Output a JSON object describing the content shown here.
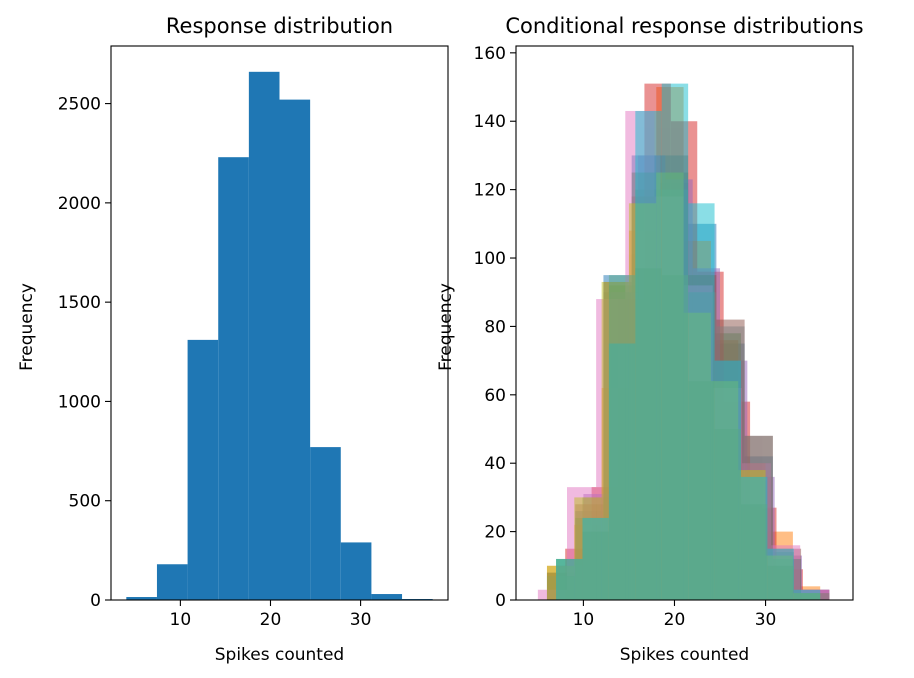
{
  "chart_data": [
    {
      "type": "bar",
      "title": "Response distribution",
      "xlabel": "Spikes counted",
      "ylabel": "Frequency",
      "xlim": [
        2.3,
        39.7
      ],
      "ylim": [
        0,
        2790
      ],
      "xticks": [
        10,
        20,
        30
      ],
      "yticks": [
        0,
        500,
        1000,
        1500,
        2000,
        2500
      ],
      "color": "#1f77b4",
      "bins": [
        {
          "x0": 4.0,
          "x1": 7.4,
          "value": 15
        },
        {
          "x0": 7.4,
          "x1": 10.8,
          "value": 180
        },
        {
          "x0": 10.8,
          "x1": 14.2,
          "value": 1310
        },
        {
          "x0": 14.2,
          "x1": 17.6,
          "value": 2230
        },
        {
          "x0": 17.6,
          "x1": 21.0,
          "value": 2660
        },
        {
          "x0": 21.0,
          "x1": 24.4,
          "value": 2520
        },
        {
          "x0": 24.4,
          "x1": 27.8,
          "value": 770
        },
        {
          "x0": 27.8,
          "x1": 31.2,
          "value": 290
        },
        {
          "x0": 31.2,
          "x1": 34.6,
          "value": 30
        },
        {
          "x0": 34.6,
          "x1": 38.0,
          "value": 5
        }
      ]
    },
    {
      "type": "bar",
      "title": "Conditional response distributions",
      "xlabel": "Spikes counted",
      "ylabel": "Frequency",
      "xlim": [
        2.6,
        39.6
      ],
      "ylim": [
        0,
        162
      ],
      "xticks": [
        10,
        20,
        30
      ],
      "yticks": [
        0,
        20,
        40,
        60,
        80,
        100,
        120,
        140,
        160
      ],
      "opacity": 0.5,
      "series": [
        {
          "color": "#1f77b4",
          "x0": 6,
          "width": 3.1,
          "values": [
            8,
            26,
            95,
            130,
            122,
            110,
            75,
            42,
            12,
            3
          ]
        },
        {
          "color": "#ff7f0e",
          "x0": 6,
          "width": 3.0,
          "values": [
            10,
            22,
            62,
            108,
            150,
            105,
            76,
            40,
            20,
            4
          ]
        },
        {
          "color": "#2ca02c",
          "x0": 7,
          "width": 2.9,
          "values": [
            12,
            30,
            92,
            120,
            125,
            95,
            78,
            35,
            14,
            2
          ]
        },
        {
          "color": "#d62728",
          "x0": 8,
          "width": 2.9,
          "values": [
            15,
            33,
            88,
            151,
            140,
            96,
            58,
            27,
            9,
            3
          ]
        },
        {
          "color": "#9467bd",
          "x0": 7,
          "width": 3.0,
          "values": [
            10,
            31,
            90,
            130,
            123,
            97,
            70,
            36,
            13,
            3
          ]
        },
        {
          "color": "#8c564b",
          "x0": 6,
          "width": 3.1,
          "values": [
            8,
            28,
            93,
            118,
            130,
            95,
            82,
            48,
            15,
            2
          ]
        },
        {
          "color": "#e377c2",
          "x0": 5,
          "width": 3.2,
          "values": [
            3,
            33,
            88,
            143,
            118,
            92,
            62,
            40,
            16,
            3
          ]
        },
        {
          "color": "#7f7f7f",
          "x0": 6,
          "width": 3.1,
          "values": [
            7,
            24,
            90,
            125,
            120,
            90,
            80,
            48,
            12,
            2
          ]
        },
        {
          "color": "#bcbd22",
          "x0": 6,
          "width": 3.0,
          "values": [
            10,
            30,
            93,
            116,
            125,
            84,
            64,
            38,
            13,
            2
          ]
        },
        {
          "color": "#17becf",
          "x0": 7,
          "width": 2.9,
          "values": [
            12,
            24,
            75,
            143,
            151,
            116,
            70,
            36,
            15,
            3
          ]
        },
        {
          "color": "#57a889",
          "x0": 7,
          "width": 2.9,
          "values": [
            12,
            20,
            95,
            97,
            95,
            64,
            50,
            28,
            10,
            2
          ]
        }
      ]
    }
  ]
}
